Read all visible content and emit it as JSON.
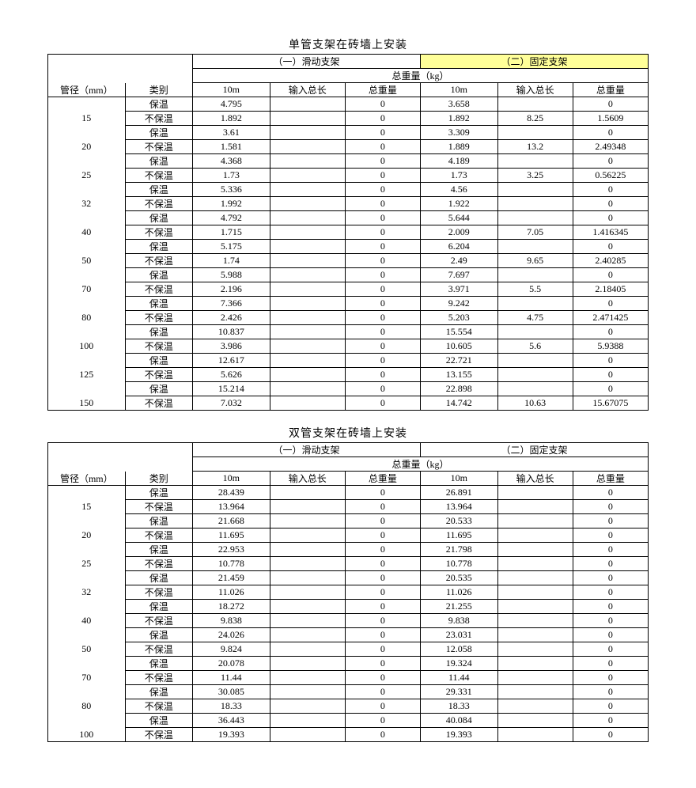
{
  "colors": {
    "highlight_bg": "#ffff99",
    "text": "#000000",
    "bg": "#ffffff",
    "border": "#000000"
  },
  "labels": {
    "pipe": "管径（mm）",
    "category": "类别",
    "slide": "（一）滑动支架",
    "fixed": "（二）固定支架",
    "total_weight_header": "总重量（kg）",
    "ten_m": "10m",
    "input_len": "输入总长",
    "total_weight": "总重量",
    "cat_insulated": "保温",
    "cat_uninsulated": "不保温"
  },
  "tables": [
    {
      "title": "单管支架在砖墙上安装",
      "highlight_fixed": true,
      "rows": [
        {
          "pipe": "15",
          "a": [
            "4.795",
            "",
            "0",
            "3.658",
            "",
            "0"
          ],
          "b": [
            "1.892",
            "",
            "0",
            "1.892",
            "8.25",
            "1.5609"
          ]
        },
        {
          "pipe": "20",
          "a": [
            "3.61",
            "",
            "0",
            "3.309",
            "",
            "0"
          ],
          "b": [
            "1.581",
            "",
            "0",
            "1.889",
            "13.2",
            "2.49348"
          ]
        },
        {
          "pipe": "25",
          "a": [
            "4.368",
            "",
            "0",
            "4.189",
            "",
            "0"
          ],
          "b": [
            "1.73",
            "",
            "0",
            "1.73",
            "3.25",
            "0.56225"
          ]
        },
        {
          "pipe": "32",
          "a": [
            "5.336",
            "",
            "0",
            "4.56",
            "",
            "0"
          ],
          "b": [
            "1.992",
            "",
            "0",
            "1.922",
            "",
            "0"
          ]
        },
        {
          "pipe": "40",
          "a": [
            "4.792",
            "",
            "0",
            "5.644",
            "",
            "0"
          ],
          "b": [
            "1.715",
            "",
            "0",
            "2.009",
            "7.05",
            "1.416345"
          ]
        },
        {
          "pipe": "50",
          "a": [
            "5.175",
            "",
            "0",
            "6.204",
            "",
            "0"
          ],
          "b": [
            "1.74",
            "",
            "0",
            "2.49",
            "9.65",
            "2.40285"
          ]
        },
        {
          "pipe": "70",
          "a": [
            "5.988",
            "",
            "0",
            "7.697",
            "",
            "0"
          ],
          "b": [
            "2.196",
            "",
            "0",
            "3.971",
            "5.5",
            "2.18405"
          ]
        },
        {
          "pipe": "80",
          "a": [
            "7.366",
            "",
            "0",
            "9.242",
            "",
            "0"
          ],
          "b": [
            "2.426",
            "",
            "0",
            "5.203",
            "4.75",
            "2.471425"
          ]
        },
        {
          "pipe": "100",
          "a": [
            "10.837",
            "",
            "0",
            "15.554",
            "",
            "0"
          ],
          "b": [
            "3.986",
            "",
            "0",
            "10.605",
            "5.6",
            "5.9388"
          ]
        },
        {
          "pipe": "125",
          "a": [
            "12.617",
            "",
            "0",
            "22.721",
            "",
            "0"
          ],
          "b": [
            "5.626",
            "",
            "0",
            "13.155",
            "",
            "0"
          ]
        },
        {
          "pipe": "150",
          "a": [
            "15.214",
            "",
            "0",
            "22.898",
            "",
            "0"
          ],
          "b": [
            "7.032",
            "",
            "0",
            "14.742",
            "10.63",
            "15.67075"
          ]
        }
      ]
    },
    {
      "title": "双管支架在砖墙上安装",
      "highlight_fixed": false,
      "rows": [
        {
          "pipe": "15",
          "a": [
            "28.439",
            "",
            "0",
            "26.891",
            "",
            "0"
          ],
          "b": [
            "13.964",
            "",
            "0",
            "13.964",
            "",
            "0"
          ]
        },
        {
          "pipe": "20",
          "a": [
            "21.668",
            "",
            "0",
            "20.533",
            "",
            "0"
          ],
          "b": [
            "11.695",
            "",
            "0",
            "11.695",
            "",
            "0"
          ]
        },
        {
          "pipe": "25",
          "a": [
            "22.953",
            "",
            "0",
            "21.798",
            "",
            "0"
          ],
          "b": [
            "10.778",
            "",
            "0",
            "10.778",
            "",
            "0"
          ]
        },
        {
          "pipe": "32",
          "a": [
            "21.459",
            "",
            "0",
            "20.535",
            "",
            "0"
          ],
          "b": [
            "11.026",
            "",
            "0",
            "11.026",
            "",
            "0"
          ]
        },
        {
          "pipe": "40",
          "a": [
            "18.272",
            "",
            "0",
            "21.255",
            "",
            "0"
          ],
          "b": [
            "9.838",
            "",
            "0",
            "9.838",
            "",
            "0"
          ]
        },
        {
          "pipe": "50",
          "a": [
            "24.026",
            "",
            "0",
            "23.031",
            "",
            "0"
          ],
          "b": [
            "9.824",
            "",
            "0",
            "12.058",
            "",
            "0"
          ]
        },
        {
          "pipe": "70",
          "a": [
            "20.078",
            "",
            "0",
            "19.324",
            "",
            "0"
          ],
          "b": [
            "11.44",
            "",
            "0",
            "11.44",
            "",
            "0"
          ]
        },
        {
          "pipe": "80",
          "a": [
            "30.085",
            "",
            "0",
            "29.331",
            "",
            "0"
          ],
          "b": [
            "18.33",
            "",
            "0",
            "18.33",
            "",
            "0"
          ]
        },
        {
          "pipe": "100",
          "a": [
            "36.443",
            "",
            "0",
            "40.084",
            "",
            "0"
          ],
          "b": [
            "19.393",
            "",
            "0",
            "19.393",
            "",
            "0"
          ]
        }
      ]
    }
  ]
}
